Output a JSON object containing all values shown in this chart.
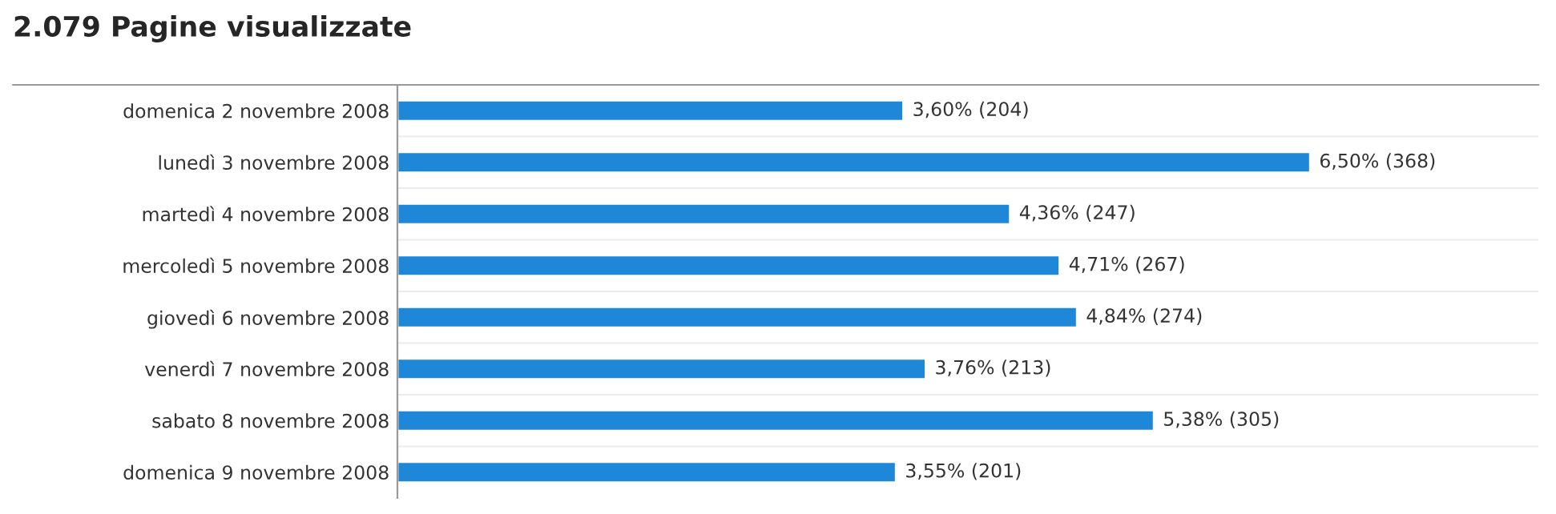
{
  "chart_data": {
    "type": "bar",
    "orientation": "horizontal",
    "title": "2.079 Pagine visualizzate",
    "categories": [
      "domenica 2 novembre 2008",
      "lunedì 3 novembre 2008",
      "martedì 4 novembre 2008",
      "mercoledì 5 novembre 2008",
      "giovedì 6 novembre 2008",
      "venerdì 7 novembre 2008",
      "sabato 8 novembre 2008",
      "domenica 9 novembre 2008"
    ],
    "values": [
      204,
      368,
      247,
      267,
      274,
      213,
      305,
      201
    ],
    "value_labels": [
      "3,60% (204)",
      "6,50% (368)",
      "4,36% (247)",
      "4,71% (267)",
      "4,84% (274)",
      "3,76% (213)",
      "5,38% (305)",
      "3,55% (201)"
    ],
    "color": "#1f87d8",
    "tick_labels": "y",
    "grid": false,
    "legend": false
  }
}
